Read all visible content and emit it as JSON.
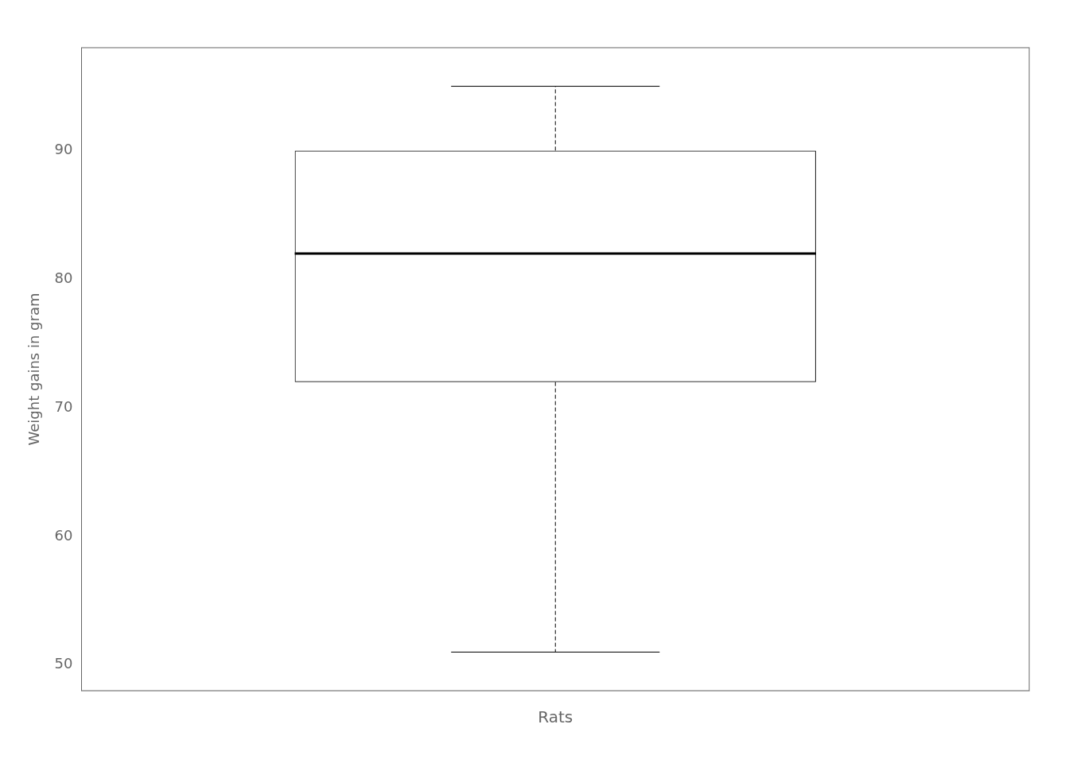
{
  "chart_data": {
    "type": "box",
    "xlabel": "Rats",
    "ylabel": "Weight gains in gram",
    "whisker_low": 51,
    "q1": 72,
    "median": 82,
    "q3": 90,
    "whisker_high": 95,
    "color": "#000000",
    "ylim": [
      48,
      98
    ],
    "yticks": [
      50,
      60,
      70,
      80,
      90
    ],
    "grid": false,
    "tick_labels": "y"
  }
}
